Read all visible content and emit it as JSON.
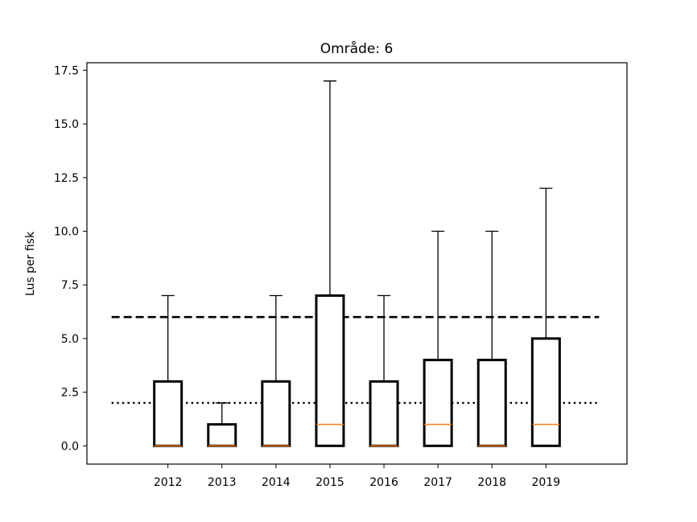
{
  "chart_data": {
    "type": "boxplot",
    "title": "Område: 6",
    "xlabel": "",
    "ylabel": "Lus per fisk",
    "ylim": [
      -0.85,
      17.85
    ],
    "yticks": [
      0.0,
      2.5,
      5.0,
      7.5,
      10.0,
      12.5,
      15.0,
      17.5
    ],
    "ytick_labels": [
      "0.0",
      "2.5",
      "5.0",
      "7.5",
      "10.0",
      "12.5",
      "15.0",
      "17.5"
    ],
    "categories": [
      "2012",
      "2013",
      "2014",
      "2015",
      "2016",
      "2017",
      "2018",
      "2019"
    ],
    "boxes": [
      {
        "whislo": 0,
        "q1": 0,
        "med": 0,
        "q3": 3,
        "whishi": 7
      },
      {
        "whislo": 0,
        "q1": 0,
        "med": 0,
        "q3": 1,
        "whishi": 2
      },
      {
        "whislo": 0,
        "q1": 0,
        "med": 0,
        "q3": 3,
        "whishi": 7
      },
      {
        "whislo": 0,
        "q1": 0,
        "med": 1,
        "q3": 7,
        "whishi": 17
      },
      {
        "whislo": 0,
        "q1": 0,
        "med": 0,
        "q3": 3,
        "whishi": 7
      },
      {
        "whislo": 0,
        "q1": 0,
        "med": 1,
        "q3": 4,
        "whishi": 10
      },
      {
        "whislo": 0,
        "q1": 0,
        "med": 0,
        "q3": 4,
        "whishi": 10
      },
      {
        "whislo": 0,
        "q1": 0,
        "med": 1,
        "q3": 5,
        "whishi": 12
      }
    ],
    "reference_lines": [
      {
        "y": 6,
        "style": "dashed"
      },
      {
        "y": 2,
        "style": "dotted"
      }
    ],
    "grid": false,
    "colors": {
      "box": "#000000",
      "median": "#ff7f0e"
    }
  }
}
